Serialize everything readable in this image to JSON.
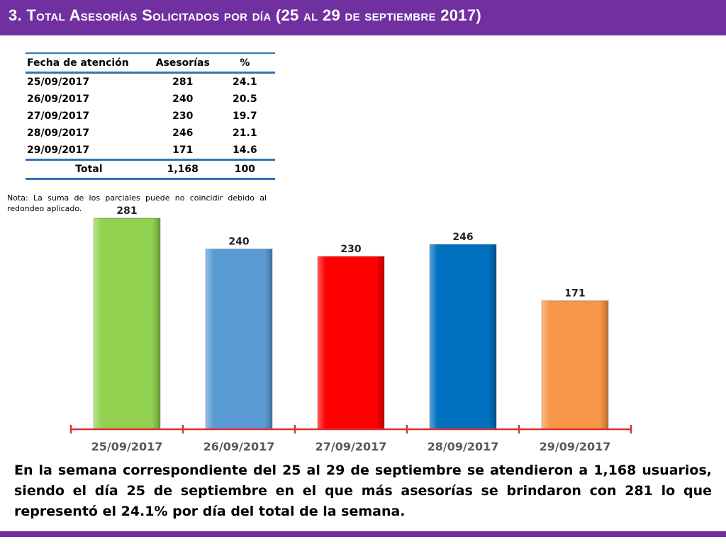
{
  "header": {
    "title": "3.  Total Asesorías Solicitados por día  (25 al 29  de septiembre 2017)"
  },
  "table": {
    "headers": [
      "Fecha de atención",
      "Asesorías",
      "%"
    ],
    "rows": [
      [
        "25/09/2017",
        "281",
        "24.1"
      ],
      [
        "26/09/2017",
        "240",
        "20.5"
      ],
      [
        "27/09/2017",
        "230",
        "19.7"
      ],
      [
        "28/09/2017",
        "246",
        "21.1"
      ],
      [
        "29/09/2017",
        "171",
        "14.6"
      ]
    ],
    "total": [
      "Total",
      "1,168",
      "100"
    ]
  },
  "note": "Nota: La suma de los parciales puede no coincidir debido al redondeo aplicado.",
  "chart_data": {
    "type": "bar",
    "categories": [
      "25/09/2017",
      "26/09/2017",
      "27/09/2017",
      "28/09/2017",
      "29/09/2017"
    ],
    "values": [
      281,
      240,
      230,
      246,
      171
    ],
    "colors": [
      "#92d050",
      "#5b9bd5",
      "#ff0000",
      "#0070c0",
      "#f79646"
    ],
    "axis_color": "#e03030",
    "ylim": [
      0,
      281
    ],
    "grid": false
  },
  "summary": "En la semana correspondiente del 25 al 29  de septiembre se atendieron a 1,168 usuarios, siendo el día 25 de septiembre en el que más asesorías se brindaron con 281 lo que representó el 24.1% por día del total de la semana."
}
